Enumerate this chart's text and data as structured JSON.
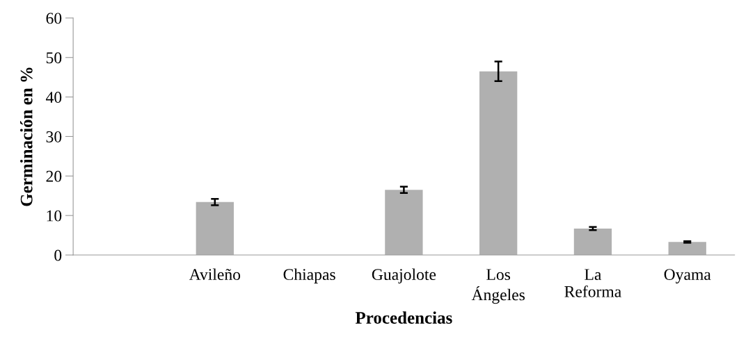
{
  "chart_data": {
    "type": "bar",
    "xlabel": "Procedencias",
    "ylabel": "Germinación en %",
    "categories": [
      null,
      "Avileño",
      "Chiapas",
      "Guajolote",
      "Los\nÁngeles",
      "La\nReforma",
      "Oyama"
    ],
    "values": [
      null,
      13.4,
      0,
      16.5,
      46.5,
      6.7,
      3.3
    ],
    "errors": [
      null,
      0.8,
      null,
      0.8,
      2.5,
      0.4,
      0.2
    ],
    "color": "#b0b0b0",
    "ylim": [
      0,
      60
    ],
    "yticks": [
      0,
      10,
      20,
      30,
      40,
      50,
      60
    ],
    "grid": false
  }
}
